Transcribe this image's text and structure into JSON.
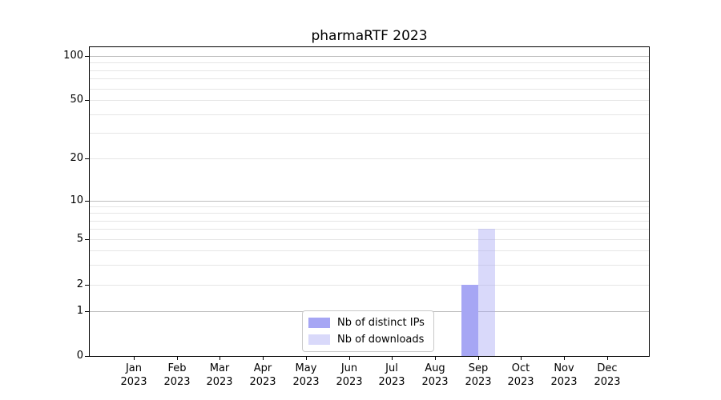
{
  "chart_data": {
    "type": "bar",
    "title": "pharmaRTF 2023",
    "categories": [
      {
        "month": "Jan",
        "year": "2023"
      },
      {
        "month": "Feb",
        "year": "2023"
      },
      {
        "month": "Mar",
        "year": "2023"
      },
      {
        "month": "Apr",
        "year": "2023"
      },
      {
        "month": "May",
        "year": "2023"
      },
      {
        "month": "Jun",
        "year": "2023"
      },
      {
        "month": "Jul",
        "year": "2023"
      },
      {
        "month": "Aug",
        "year": "2023"
      },
      {
        "month": "Sep",
        "year": "2023"
      },
      {
        "month": "Oct",
        "year": "2023"
      },
      {
        "month": "Nov",
        "year": "2023"
      },
      {
        "month": "Dec",
        "year": "2023"
      }
    ],
    "series": [
      {
        "name": "Nb of distinct IPs",
        "color": "#a6a6f4",
        "values": [
          0,
          0,
          0,
          0,
          0,
          0,
          0,
          0,
          2,
          0,
          0,
          0
        ]
      },
      {
        "name": "Nb of downloads",
        "color": "rgba(164,164,244,0.42)",
        "values": [
          0,
          0,
          0,
          0,
          0,
          0,
          0,
          0,
          6,
          0,
          0,
          0
        ]
      }
    ],
    "y_axis": {
      "scale": "log-like",
      "ticks": [
        0,
        1,
        2,
        5,
        10,
        20,
        50,
        100
      ],
      "minor_ticks": [
        3,
        4,
        6,
        7,
        8,
        9,
        30,
        40,
        60,
        70,
        80,
        90
      ],
      "top_value": 115
    },
    "x_axis": {
      "tick_label_lines": 2
    },
    "legend": {
      "position": "lower center"
    },
    "grid": {
      "horizontal": true,
      "major_color": "#bdbdbd",
      "minor_color": "#e6e6e6"
    },
    "text_color": "#000000",
    "background_color": "#ffffff"
  }
}
